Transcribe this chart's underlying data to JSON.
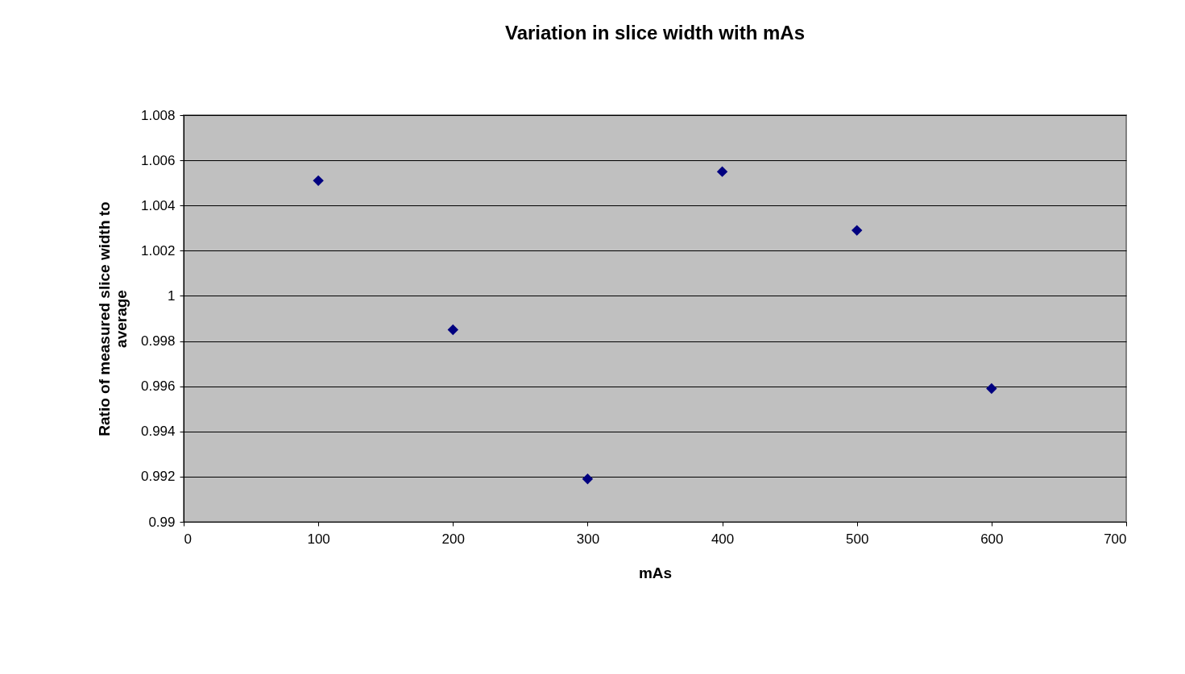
{
  "chart_data": {
    "type": "scatter",
    "title": "Variation in slice width with mAs",
    "xlabel": "mAs",
    "ylabel": "Ratio of measured slice width to average",
    "x": [
      100,
      200,
      300,
      400,
      500,
      600
    ],
    "series": [
      {
        "color": "#000080",
        "values": [
          1.0051,
          0.9985,
          0.9919,
          1.0055,
          1.0029,
          0.9959
        ]
      }
    ],
    "xlim": [
      0,
      700
    ],
    "xticks": [
      0,
      100,
      200,
      300,
      400,
      500,
      600,
      700
    ],
    "ylim": [
      0.99,
      1.008
    ],
    "yticks": [
      0.99,
      0.992,
      0.994,
      0.996,
      0.998,
      1,
      1.002,
      1.004,
      1.006,
      1.008
    ],
    "grid": "y",
    "marker": "diamond"
  }
}
